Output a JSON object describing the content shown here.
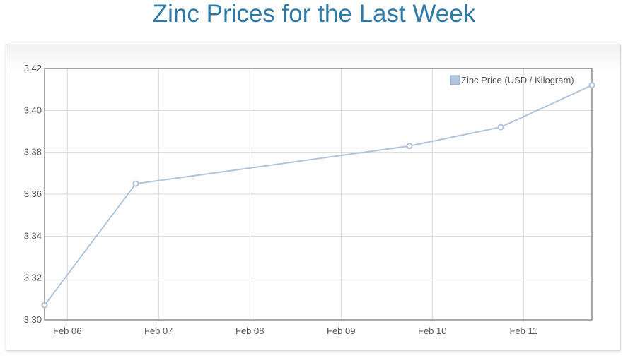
{
  "page": {
    "title": "Zinc Prices for the Last Week"
  },
  "colors": {
    "title": "#2e7aa8",
    "series": "#b0c4de",
    "grid": "#d9d9d9",
    "axis": "#555555"
  },
  "chart_data": {
    "type": "line",
    "title": "Zinc Prices for the Last Week",
    "xlabel": "",
    "ylabel": "",
    "x_ticks": [
      {
        "label": "Feb 06",
        "day": 6
      },
      {
        "label": "Feb 07",
        "day": 7
      },
      {
        "label": "Feb 08",
        "day": 8
      },
      {
        "label": "Feb 09",
        "day": 9
      },
      {
        "label": "Feb 10",
        "day": 10
      },
      {
        "label": "Feb 11",
        "day": 11
      }
    ],
    "xlim": [
      "Feb 05 18:00",
      "Feb 11 18:00"
    ],
    "ylim": [
      3.3,
      3.42
    ],
    "y_ticks": [
      "3.30",
      "3.32",
      "3.34",
      "3.36",
      "3.38",
      "3.40",
      "3.42"
    ],
    "grid": true,
    "legend": "top-right",
    "series": [
      {
        "name": "Zinc Price (USD / Kilogram)",
        "points": [
          {
            "x": "Feb 05 18:00",
            "y": 3.307
          },
          {
            "x": "Feb 06 18:00",
            "y": 3.365
          },
          {
            "x": "Feb 09 18:00",
            "y": 3.383
          },
          {
            "x": "Feb 10 18:00",
            "y": 3.392
          },
          {
            "x": "Feb 11 18:00",
            "y": 3.412
          }
        ]
      }
    ]
  }
}
